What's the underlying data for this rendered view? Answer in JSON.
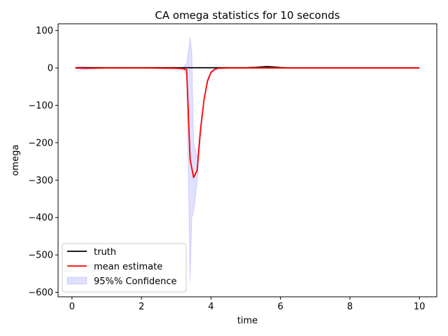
{
  "chart_data": {
    "type": "line",
    "title": "CA omega statistics for 10 seconds",
    "xlabel": "time",
    "ylabel": "omega",
    "xlim": [
      -0.4,
      10.5
    ],
    "ylim": [
      -612,
      118
    ],
    "xticks": [
      0,
      2,
      4,
      6,
      8,
      10
    ],
    "yticks": [
      100,
      0,
      -100,
      -200,
      -300,
      -400,
      -500,
      -600
    ],
    "xtick_labels": [
      "0",
      "2",
      "4",
      "6",
      "8",
      "10"
    ],
    "ytick_labels": [
      "100",
      "0",
      "−100",
      "−200",
      "−300",
      "−400",
      "−500",
      "−600"
    ],
    "grid": false,
    "legend_position": "lower-left",
    "series": [
      {
        "name": "truth",
        "color": "#000000",
        "x": [
          0.1,
          1.0,
          2.0,
          3.0,
          4.0,
          4.5,
          5.0,
          5.3,
          5.6,
          5.8,
          6.0,
          6.2,
          6.5,
          7.0,
          8.0,
          9.0,
          10.0
        ],
        "y": [
          0.5,
          0.5,
          0.5,
          0.5,
          0.5,
          0.5,
          0.6,
          1.5,
          3.5,
          2.5,
          1.0,
          0.3,
          0.0,
          0.0,
          0.0,
          0.0,
          0.0
        ]
      },
      {
        "name": "mean estimate",
        "color": "#ff0000",
        "x": [
          0.1,
          0.5,
          1.0,
          2.0,
          3.0,
          3.2,
          3.3,
          3.4,
          3.5,
          3.6,
          3.7,
          3.8,
          3.9,
          4.0,
          4.1,
          4.2,
          4.5,
          5.0,
          6.0,
          7.0,
          8.0,
          9.0,
          10.0
        ],
        "y": [
          0.0,
          -1.0,
          0.0,
          0.0,
          -1.0,
          -2.0,
          -5.0,
          -245.0,
          -293.0,
          -275.0,
          -165.0,
          -85.0,
          -35.0,
          -12.0,
          -4.0,
          -1.0,
          0.0,
          0.0,
          0.0,
          0.0,
          0.0,
          0.0,
          0.0
        ]
      }
    ],
    "confidence_band": {
      "name": "95%% Confidence",
      "color": "#0000ff",
      "x": [
        0.1,
        0.2,
        0.3,
        0.4,
        0.5,
        1.0,
        3.0,
        3.2,
        3.3,
        3.4,
        3.45,
        3.5,
        3.6,
        3.7,
        3.8,
        3.9,
        4.0,
        4.2,
        4.5,
        10.0
      ],
      "upper": [
        2.0,
        3.0,
        4.0,
        3.0,
        2.0,
        1.0,
        1.0,
        2.0,
        10.0,
        82.0,
        40.0,
        -200.0,
        -240.0,
        -150.0,
        -80.0,
        -30.0,
        -8.0,
        -0.5,
        0.5,
        0.5
      ],
      "lower": [
        -2.0,
        -3.0,
        -5.0,
        -4.0,
        -2.0,
        -1.0,
        -1.0,
        -5.0,
        -20.0,
        -575.0,
        -400.0,
        -385.0,
        -310.0,
        -180.0,
        -90.0,
        -40.0,
        -16.0,
        -1.5,
        -0.5,
        -0.5
      ]
    }
  }
}
